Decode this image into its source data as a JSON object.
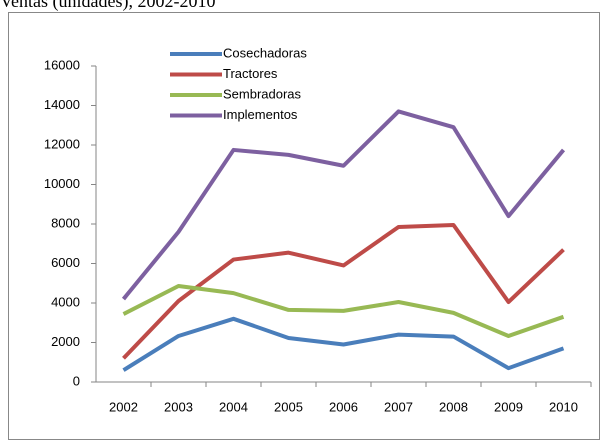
{
  "chart_data": {
    "type": "line",
    "title": "Ventas (unidades), 2002-2010",
    "categories": [
      "2002",
      "2003",
      "2004",
      "2005",
      "2006",
      "2007",
      "2008",
      "2009",
      "2010"
    ],
    "series": [
      {
        "name": "Cosechadoras",
        "color": "#4a7ebb",
        "values": [
          600,
          2330,
          3200,
          2230,
          1900,
          2400,
          2300,
          700,
          1700
        ]
      },
      {
        "name": "Tractores",
        "color": "#be4b48",
        "values": [
          1200,
          4100,
          6200,
          6550,
          5900,
          7850,
          7950,
          4050,
          6700
        ]
      },
      {
        "name": "Sembradoras",
        "color": "#98b954",
        "values": [
          3440,
          4860,
          4500,
          3650,
          3600,
          4050,
          3500,
          2330,
          3300
        ]
      },
      {
        "name": "Implementos",
        "color": "#7d60a0",
        "values": [
          4200,
          7600,
          11750,
          11500,
          10950,
          13700,
          12900,
          8400,
          11750
        ]
      }
    ],
    "ylim": [
      0,
      16000
    ],
    "yticks": [
      0,
      2000,
      4000,
      6000,
      8000,
      10000,
      12000,
      14000,
      16000
    ],
    "grid": false,
    "legend": "top-left"
  }
}
